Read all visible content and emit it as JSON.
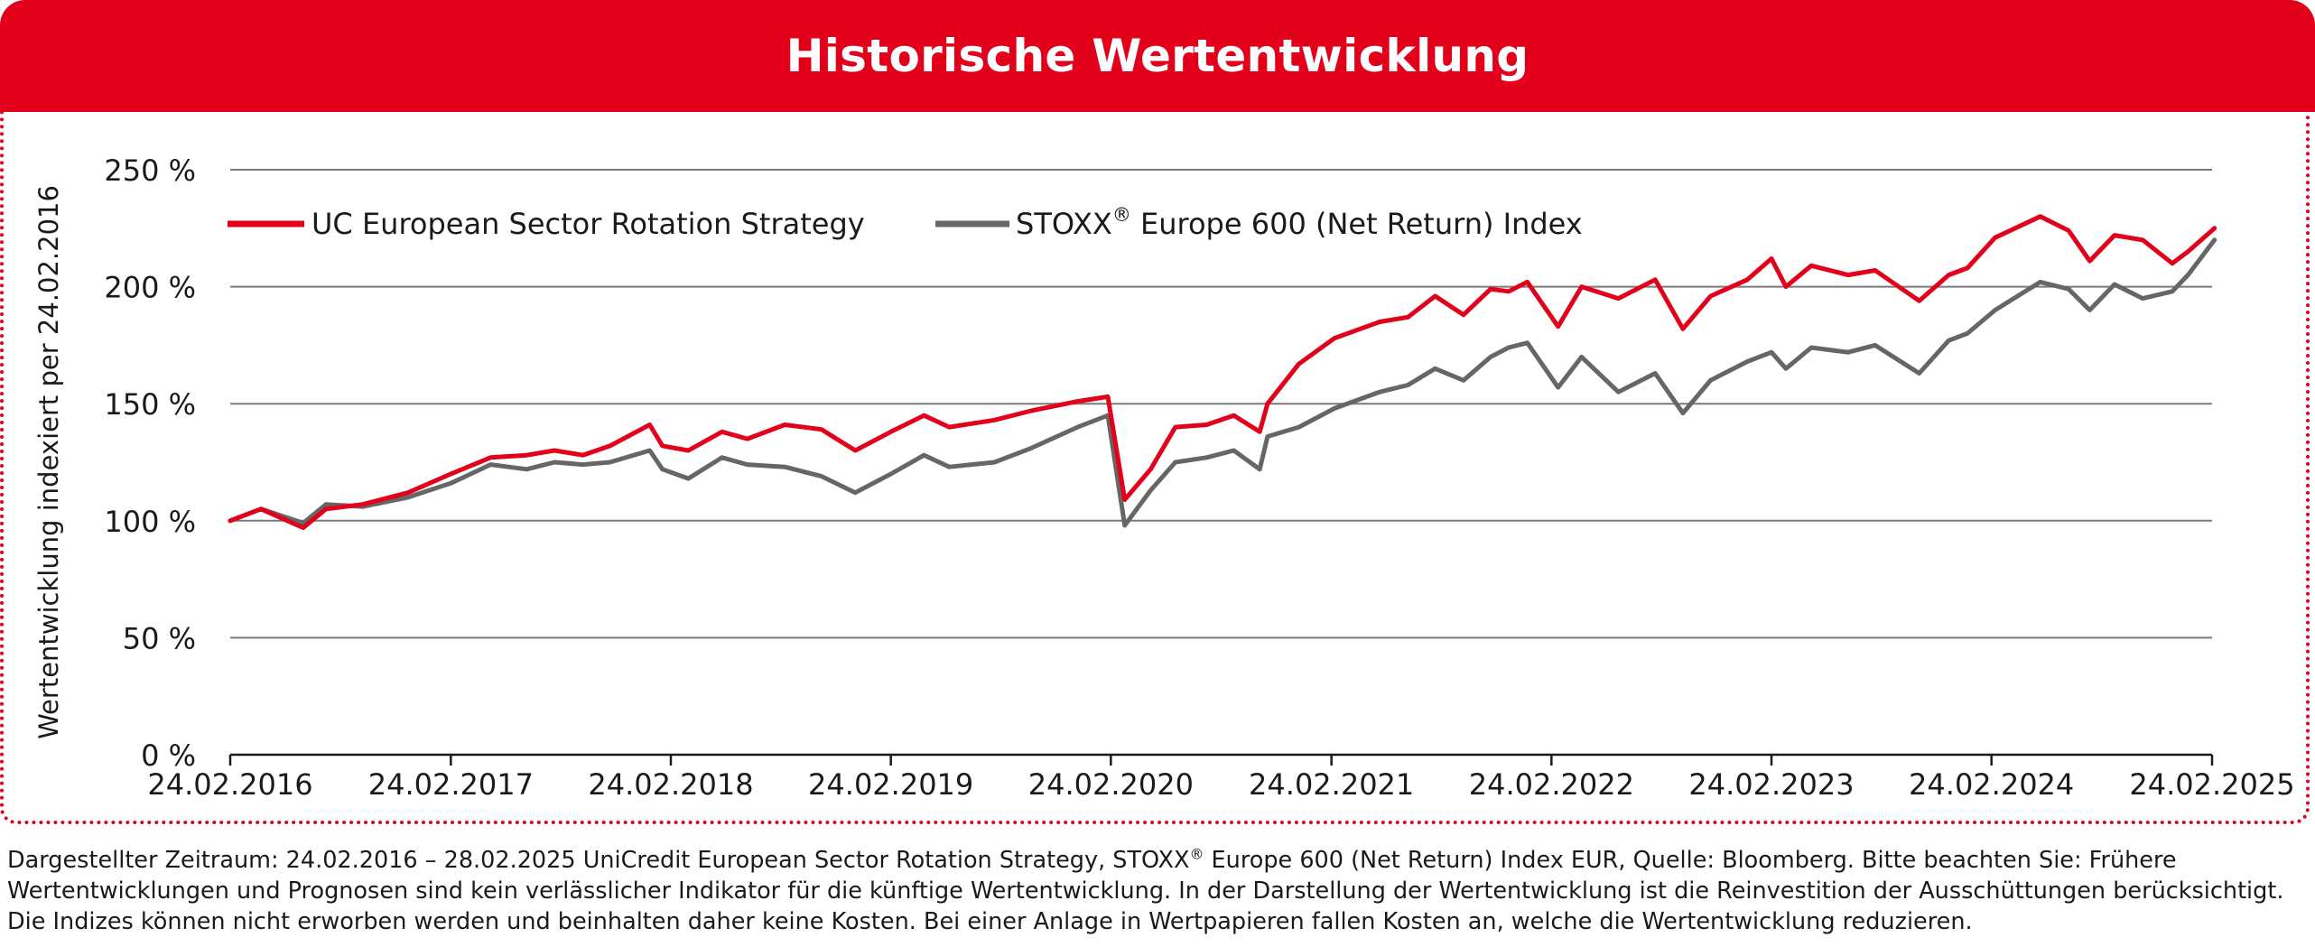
{
  "header": {
    "title": "Historische Wertentwicklung"
  },
  "chart_data": {
    "type": "line",
    "ylabel": "Wertentwicklung indexiert per 24.02.2016",
    "ylim": [
      0,
      250
    ],
    "y_ticks": [
      0,
      50,
      100,
      150,
      200,
      250
    ],
    "y_tick_labels": [
      "0 %",
      "50 %",
      "100 %",
      "150 %",
      "200 %",
      "250 %"
    ],
    "x_range": [
      "2016-02-24",
      "2025-02-28"
    ],
    "x_ticks": [
      "2016-02-24",
      "2017-02-24",
      "2018-02-24",
      "2019-02-24",
      "2020-02-24",
      "2021-02-24",
      "2022-02-24",
      "2023-02-24",
      "2024-02-24",
      "2025-02-24"
    ],
    "x_tick_labels": [
      "24.02.2016",
      "24.02.2017",
      "24.02.2018",
      "24.02.2019",
      "24.02.2020",
      "24.02.2021",
      "24.02.2022",
      "24.02.2023",
      "24.02.2024",
      "24.02.2025"
    ],
    "grid": "horizontal",
    "legend": "top-left",
    "series": [
      {
        "name": "UC European Sector Rotation Strategy",
        "color": "#e2001a",
        "points": [
          [
            "2016-02-24",
            100
          ],
          [
            "2016-04-15",
            105
          ],
          [
            "2016-06-24",
            97
          ],
          [
            "2016-08-01",
            105
          ],
          [
            "2016-10-01",
            107
          ],
          [
            "2016-12-15",
            112
          ],
          [
            "2017-02-24",
            120
          ],
          [
            "2017-05-01",
            127
          ],
          [
            "2017-06-30",
            128
          ],
          [
            "2017-08-15",
            130
          ],
          [
            "2017-10-01",
            128
          ],
          [
            "2017-11-15",
            132
          ],
          [
            "2018-01-20",
            141
          ],
          [
            "2018-02-10",
            132
          ],
          [
            "2018-03-25",
            130
          ],
          [
            "2018-05-20",
            138
          ],
          [
            "2018-07-01",
            135
          ],
          [
            "2018-09-01",
            141
          ],
          [
            "2018-11-01",
            139
          ],
          [
            "2018-12-27",
            130
          ],
          [
            "2019-02-24",
            138
          ],
          [
            "2019-04-20",
            145
          ],
          [
            "2019-06-01",
            140
          ],
          [
            "2019-08-15",
            143
          ],
          [
            "2019-10-15",
            147
          ],
          [
            "2019-12-31",
            151
          ],
          [
            "2020-02-19",
            153
          ],
          [
            "2020-03-18",
            109
          ],
          [
            "2020-04-30",
            122
          ],
          [
            "2020-06-10",
            140
          ],
          [
            "2020-08-01",
            141
          ],
          [
            "2020-09-15",
            145
          ],
          [
            "2020-10-28",
            138
          ],
          [
            "2020-11-10",
            150
          ],
          [
            "2021-01-01",
            167
          ],
          [
            "2021-03-01",
            178
          ],
          [
            "2021-05-15",
            185
          ],
          [
            "2021-07-01",
            187
          ],
          [
            "2021-08-15",
            196
          ],
          [
            "2021-10-01",
            188
          ],
          [
            "2021-11-15",
            199
          ],
          [
            "2021-12-15",
            198
          ],
          [
            "2022-01-15",
            202
          ],
          [
            "2022-03-07",
            183
          ],
          [
            "2022-04-15",
            200
          ],
          [
            "2022-06-15",
            195
          ],
          [
            "2022-08-15",
            203
          ],
          [
            "2022-09-30",
            182
          ],
          [
            "2022-11-15",
            196
          ],
          [
            "2023-01-15",
            203
          ],
          [
            "2023-02-24",
            212
          ],
          [
            "2023-03-20",
            200
          ],
          [
            "2023-05-01",
            209
          ],
          [
            "2023-07-01",
            205
          ],
          [
            "2023-08-15",
            207
          ],
          [
            "2023-10-27",
            194
          ],
          [
            "2023-12-15",
            205
          ],
          [
            "2024-01-15",
            208
          ],
          [
            "2024-03-01",
            221
          ],
          [
            "2024-05-15",
            230
          ],
          [
            "2024-07-01",
            224
          ],
          [
            "2024-08-05",
            211
          ],
          [
            "2024-09-15",
            222
          ],
          [
            "2024-11-01",
            220
          ],
          [
            "2024-12-20",
            210
          ],
          [
            "2025-01-15",
            215
          ],
          [
            "2025-02-28",
            225
          ]
        ]
      },
      {
        "name": "STOXX® Europe 600 (Net Return) Index",
        "color": "#666666",
        "points": [
          [
            "2016-02-24",
            100
          ],
          [
            "2016-04-15",
            105
          ],
          [
            "2016-06-24",
            99
          ],
          [
            "2016-08-01",
            107
          ],
          [
            "2016-10-01",
            106
          ],
          [
            "2016-12-15",
            110
          ],
          [
            "2017-02-24",
            116
          ],
          [
            "2017-05-01",
            124
          ],
          [
            "2017-06-30",
            122
          ],
          [
            "2017-08-15",
            125
          ],
          [
            "2017-10-01",
            124
          ],
          [
            "2017-11-15",
            125
          ],
          [
            "2018-01-20",
            130
          ],
          [
            "2018-02-10",
            122
          ],
          [
            "2018-03-25",
            118
          ],
          [
            "2018-05-20",
            127
          ],
          [
            "2018-07-01",
            124
          ],
          [
            "2018-09-01",
            123
          ],
          [
            "2018-11-01",
            119
          ],
          [
            "2018-12-27",
            112
          ],
          [
            "2019-02-24",
            120
          ],
          [
            "2019-04-20",
            128
          ],
          [
            "2019-06-01",
            123
          ],
          [
            "2019-08-15",
            125
          ],
          [
            "2019-10-15",
            131
          ],
          [
            "2019-12-31",
            140
          ],
          [
            "2020-02-19",
            145
          ],
          [
            "2020-03-18",
            98
          ],
          [
            "2020-04-30",
            113
          ],
          [
            "2020-06-10",
            125
          ],
          [
            "2020-08-01",
            127
          ],
          [
            "2020-09-15",
            130
          ],
          [
            "2020-10-28",
            122
          ],
          [
            "2020-11-10",
            136
          ],
          [
            "2021-01-01",
            140
          ],
          [
            "2021-03-01",
            148
          ],
          [
            "2021-05-15",
            155
          ],
          [
            "2021-07-01",
            158
          ],
          [
            "2021-08-15",
            165
          ],
          [
            "2021-10-01",
            160
          ],
          [
            "2021-11-15",
            170
          ],
          [
            "2021-12-15",
            174
          ],
          [
            "2022-01-15",
            176
          ],
          [
            "2022-03-07",
            157
          ],
          [
            "2022-04-15",
            170
          ],
          [
            "2022-06-15",
            155
          ],
          [
            "2022-08-15",
            163
          ],
          [
            "2022-09-30",
            146
          ],
          [
            "2022-11-15",
            160
          ],
          [
            "2023-01-15",
            168
          ],
          [
            "2023-02-24",
            172
          ],
          [
            "2023-03-20",
            165
          ],
          [
            "2023-05-01",
            174
          ],
          [
            "2023-07-01",
            172
          ],
          [
            "2023-08-15",
            175
          ],
          [
            "2023-10-27",
            163
          ],
          [
            "2023-12-15",
            177
          ],
          [
            "2024-01-15",
            180
          ],
          [
            "2024-03-01",
            190
          ],
          [
            "2024-05-15",
            202
          ],
          [
            "2024-07-01",
            199
          ],
          [
            "2024-08-05",
            190
          ],
          [
            "2024-09-15",
            201
          ],
          [
            "2024-11-01",
            195
          ],
          [
            "2024-12-20",
            198
          ],
          [
            "2025-01-15",
            205
          ],
          [
            "2025-02-28",
            220
          ]
        ]
      }
    ]
  },
  "legend": {
    "series1_label": "UC European Sector Rotation Strategy",
    "series2_label_pre": "STOXX",
    "series2_label_sup": "®",
    "series2_label_post": " Europe 600 (Net Return) Index"
  },
  "footnote": {
    "line1_pre": "Dargestellter Zeitraum: 24.02.2016 – 28.02.2025 UniCredit European Sector Rotation Strategy, STOXX",
    "line1_sup": "®",
    "line1_post": " Europe 600 (Net Return) Index EUR, Quelle: Bloomberg. Bitte beachten Sie: Frühere",
    "line2": "Wertentwicklungen und Prognosen sind kein verlässlicher Indikator für die künftige Wertentwicklung. In der Darstellung der Wertentwicklung ist die Reinvestition der Ausschüttungen berücksichtigt.",
    "line3": "Die Indizes können nicht erworben werden und beinhalten daher keine Kosten. Bei einer Anlage in Wertpapieren fallen Kosten an, welche die Wertentwicklung reduzieren."
  }
}
